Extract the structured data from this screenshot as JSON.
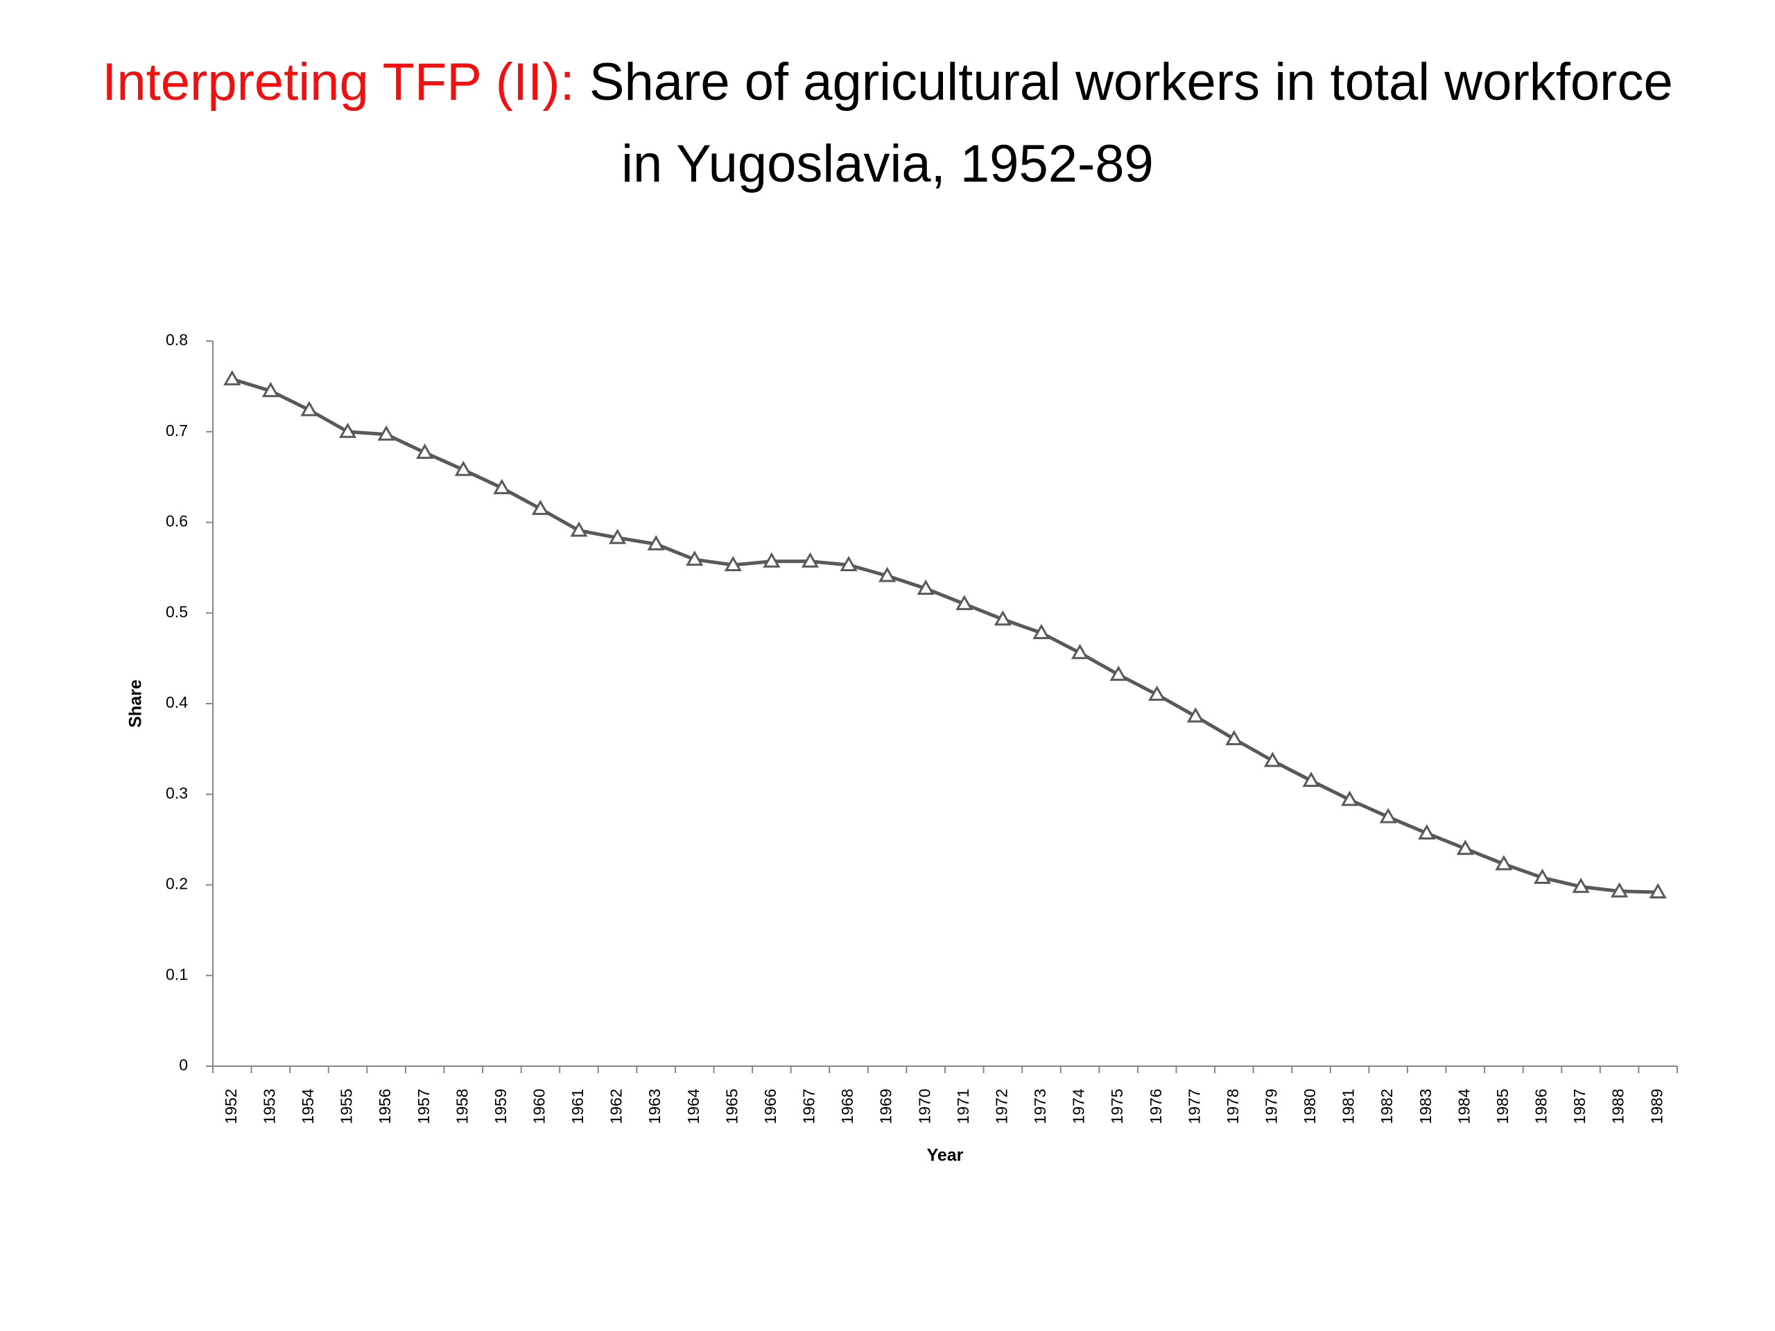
{
  "chart_data": {
    "type": "line",
    "title_highlight": "Interpreting TFP (II):",
    "title": "Share of agricultural workers in total workforce in Yugoslavia, 1952-89",
    "x_label": "Year",
    "y_label": "Share",
    "categories": [
      "1952",
      "1953",
      "1954",
      "1955",
      "1956",
      "1957",
      "1958",
      "1959",
      "1960",
      "1961",
      "1962",
      "1963",
      "1964",
      "1965",
      "1966",
      "1967",
      "1968",
      "1969",
      "1970",
      "1971",
      "1972",
      "1973",
      "1974",
      "1975",
      "1976",
      "1977",
      "1978",
      "1979",
      "1980",
      "1981",
      "1982",
      "1983",
      "1984",
      "1985",
      "1986",
      "1987",
      "1988",
      "1989"
    ],
    "series": [
      {
        "name": "Share",
        "color": "#595959",
        "values": [
          0.758,
          0.745,
          0.724,
          0.7,
          0.697,
          0.677,
          0.658,
          0.638,
          0.615,
          0.591,
          0.583,
          0.576,
          0.559,
          0.553,
          0.557,
          0.557,
          0.553,
          0.541,
          0.527,
          0.51,
          0.493,
          0.478,
          0.456,
          0.432,
          0.41,
          0.386,
          0.361,
          0.337,
          0.315,
          0.294,
          0.275,
          0.257,
          0.24,
          0.223,
          0.208,
          0.198,
          0.193,
          0.192
        ]
      }
    ],
    "ylim": [
      0,
      0.8
    ],
    "yticks": [
      0,
      0.1,
      0.2,
      0.3,
      0.4,
      0.5,
      0.6,
      0.7,
      0.8
    ],
    "grid": false
  }
}
